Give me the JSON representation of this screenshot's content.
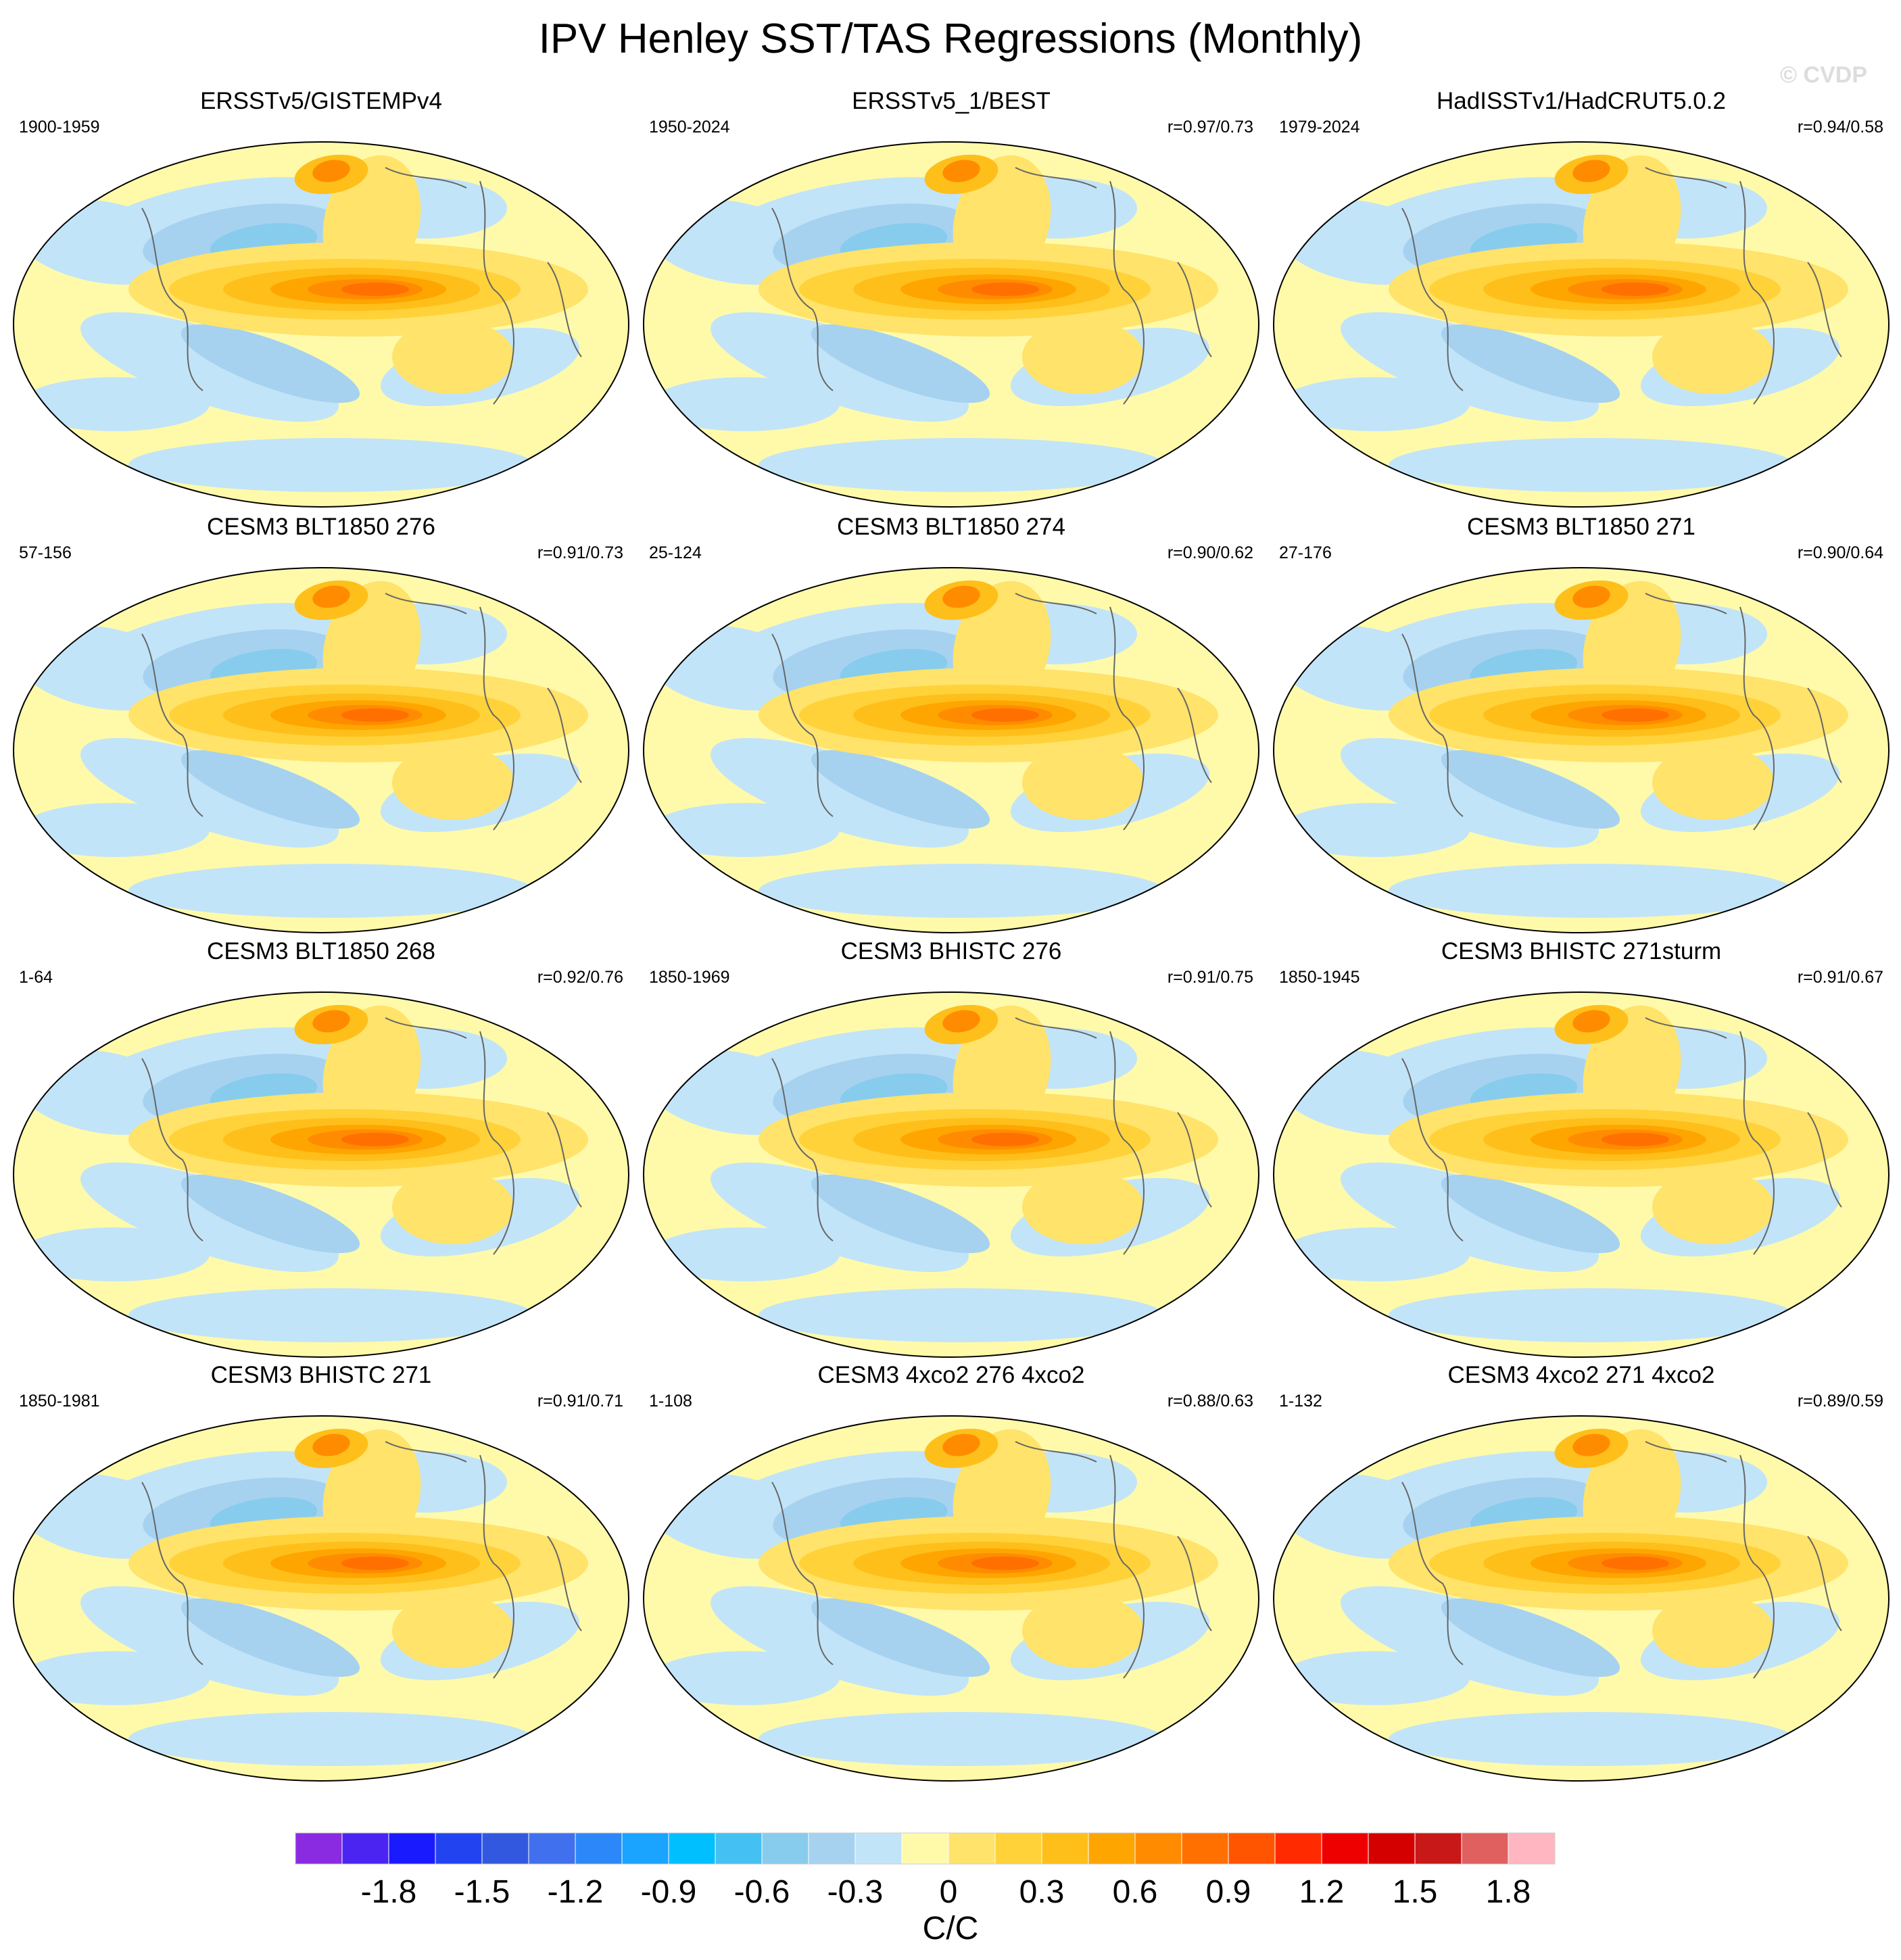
{
  "title": "IPV Henley SST/TAS Regressions (Monthly)",
  "watermark": "© CVDP",
  "chart_data": [
    {
      "type": "heatmap",
      "title": "ERSSTv5/GISTEMPv4",
      "period": "1900-1959",
      "correlation": ""
    },
    {
      "type": "heatmap",
      "title": "ERSSTv5_1/BEST",
      "period": "1950-2024",
      "correlation": "r=0.97/0.73"
    },
    {
      "type": "heatmap",
      "title": "HadISSTv1/HadCRUT5.0.2",
      "period": "1979-2024",
      "correlation": "r=0.94/0.58"
    },
    {
      "type": "heatmap",
      "title": "CESM3 BLT1850 276",
      "period": "57-156",
      "correlation": "r=0.91/0.73"
    },
    {
      "type": "heatmap",
      "title": "CESM3 BLT1850 274",
      "period": "25-124",
      "correlation": "r=0.90/0.62"
    },
    {
      "type": "heatmap",
      "title": "CESM3 BLT1850 271",
      "period": "27-176",
      "correlation": "r=0.90/0.64"
    },
    {
      "type": "heatmap",
      "title": "CESM3 BLT1850 268",
      "period": "1-64",
      "correlation": "r=0.92/0.76"
    },
    {
      "type": "heatmap",
      "title": "CESM3 BHISTC 276",
      "period": "1850-1969",
      "correlation": "r=0.91/0.75"
    },
    {
      "type": "heatmap",
      "title": "CESM3 BHISTC 271sturm",
      "period": "1850-1945",
      "correlation": "r=0.91/0.67"
    },
    {
      "type": "heatmap",
      "title": "CESM3 BHISTC 271",
      "period": "1850-1981",
      "correlation": "r=0.91/0.71"
    },
    {
      "type": "heatmap",
      "title": "CESM3 4xco2 276 4xco2",
      "period": "1-108",
      "correlation": "r=0.88/0.63"
    },
    {
      "type": "heatmap",
      "title": "CESM3 4xco2 271 4xco2",
      "period": "1-132",
      "correlation": "r=0.89/0.59"
    }
  ],
  "colorbar": {
    "units": "C/C",
    "tick_labels": [
      "-1.8",
      "-1.5",
      "-1.2",
      "-0.9",
      "-0.6",
      "-0.3",
      "0",
      "0.3",
      "0.6",
      "0.9",
      "1.2",
      "1.5",
      "1.8"
    ],
    "colors": [
      "#8a2be2",
      "#4b24f2",
      "#1a1aff",
      "#2244f0",
      "#3358e0",
      "#4070ee",
      "#2c88f8",
      "#1aa3ff",
      "#00bfff",
      "#44c0f2",
      "#88cced",
      "#a6d2f0",
      "#c2e4f8",
      "#fffaaa",
      "#ffe36a",
      "#ffd23a",
      "#ffbf1a",
      "#ffa500",
      "#ff8c00",
      "#ff7000",
      "#ff5500",
      "#ff2a00",
      "#ee0000",
      "#d40000",
      "#c81818",
      "#e06060",
      "#ffb6c1"
    ]
  }
}
